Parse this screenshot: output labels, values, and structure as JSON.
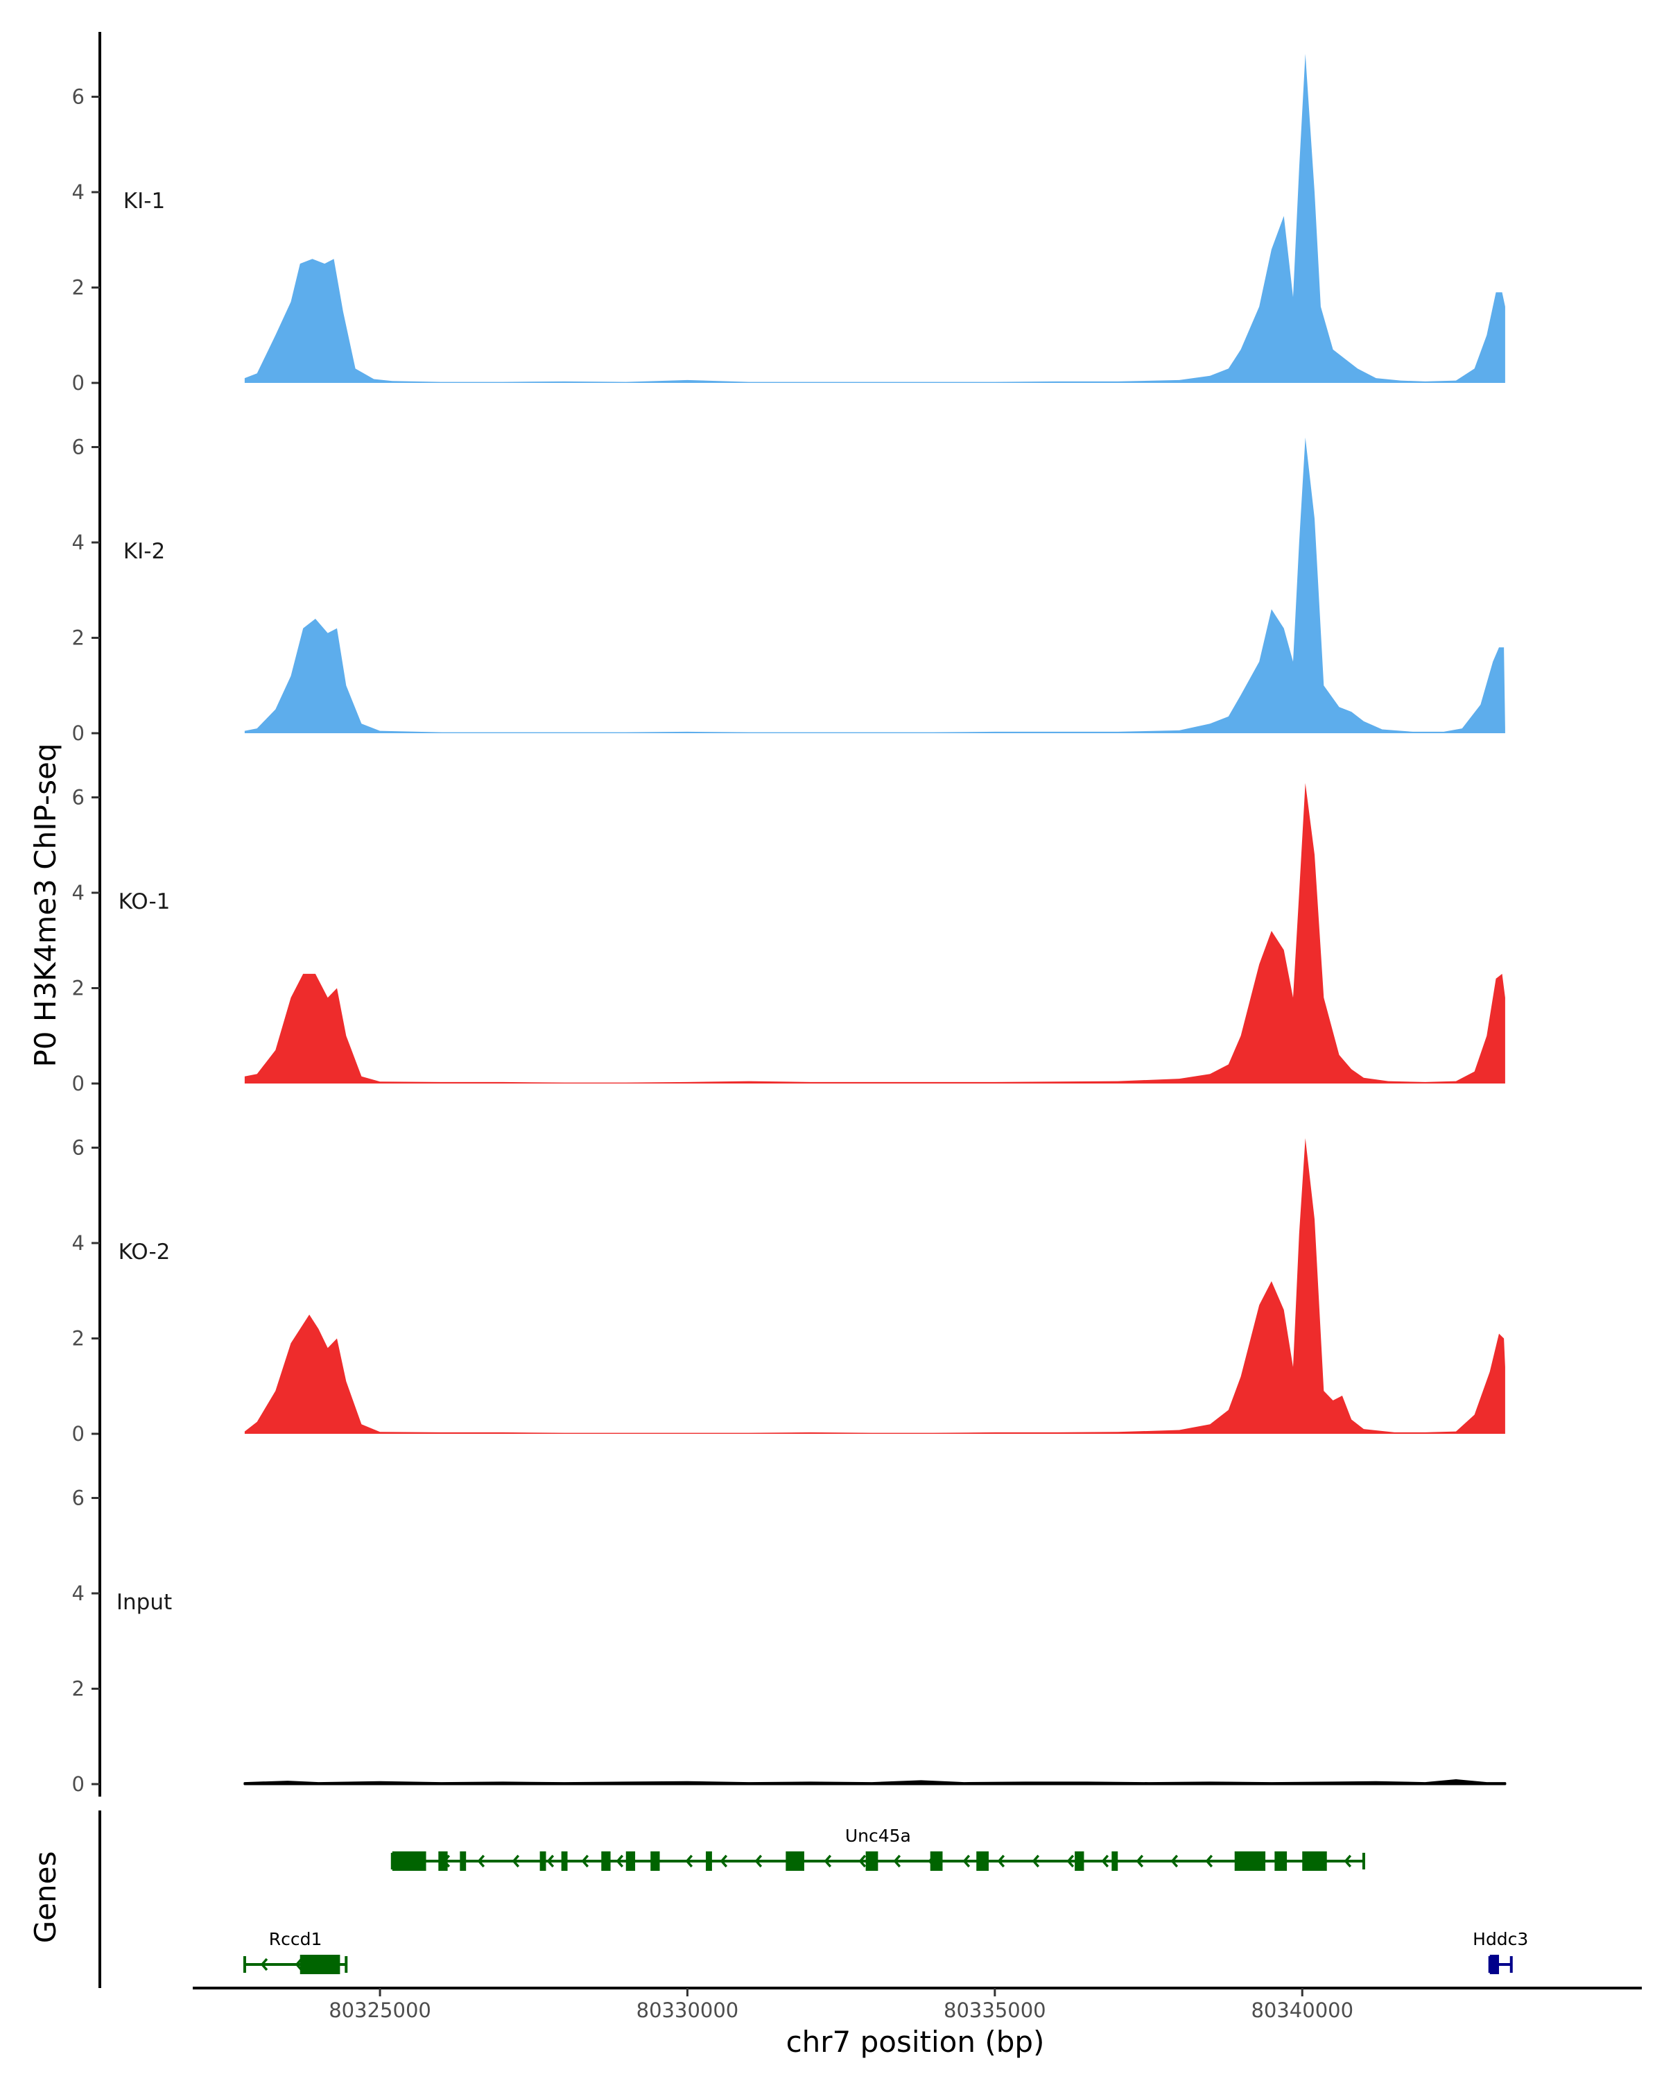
{
  "chart_data": {
    "type": "area",
    "title": "",
    "ylabel": "P0 H3K4me3 ChIP-seq",
    "xlabel": "chr7 position (bp)",
    "xlim": [
      80322000,
      80345500
    ],
    "ylim": [
      0,
      7.2
    ],
    "y_ticks": [
      0,
      2,
      4,
      6
    ],
    "x_ticks": [
      80325000,
      80330000,
      80335000,
      80340000
    ],
    "x_tick_labels": [
      "80325000",
      "80330000",
      "80335000",
      "80340000"
    ],
    "signal_range": [
      80322800,
      80343300
    ],
    "tracks": [
      {
        "name": "KI-1",
        "color": "#5DADEC",
        "points": [
          [
            80322800,
            0.1
          ],
          [
            80323000,
            0.2
          ],
          [
            80323300,
            1.0
          ],
          [
            80323550,
            1.7
          ],
          [
            80323700,
            2.5
          ],
          [
            80323900,
            2.6
          ],
          [
            80324100,
            2.5
          ],
          [
            80324250,
            2.6
          ],
          [
            80324400,
            1.5
          ],
          [
            80324600,
            0.3
          ],
          [
            80324900,
            0.08
          ],
          [
            80325200,
            0.04
          ],
          [
            80326000,
            0.02
          ],
          [
            80327000,
            0.02
          ],
          [
            80328000,
            0.03
          ],
          [
            80329000,
            0.02
          ],
          [
            80330000,
            0.06
          ],
          [
            80331000,
            0.02
          ],
          [
            80332000,
            0.02
          ],
          [
            80333000,
            0.02
          ],
          [
            80334000,
            0.02
          ],
          [
            80335000,
            0.02
          ],
          [
            80336000,
            0.03
          ],
          [
            80337000,
            0.03
          ],
          [
            80338000,
            0.06
          ],
          [
            80338500,
            0.15
          ],
          [
            80338800,
            0.3
          ],
          [
            80339000,
            0.7
          ],
          [
            80339300,
            1.6
          ],
          [
            80339500,
            2.8
          ],
          [
            80339700,
            3.5
          ],
          [
            80339850,
            1.8
          ],
          [
            80339950,
            4.5
          ],
          [
            80340050,
            6.9
          ],
          [
            80340200,
            4.0
          ],
          [
            80340300,
            1.6
          ],
          [
            80340500,
            0.7
          ],
          [
            80340700,
            0.5
          ],
          [
            80340900,
            0.3
          ],
          [
            80341200,
            0.1
          ],
          [
            80341600,
            0.05
          ],
          [
            80342000,
            0.03
          ],
          [
            80342500,
            0.05
          ],
          [
            80342800,
            0.3
          ],
          [
            80343000,
            1.0
          ],
          [
            80343150,
            1.9
          ],
          [
            80343250,
            1.9
          ],
          [
            80343300,
            1.6
          ]
        ]
      },
      {
        "name": "KI-2",
        "color": "#5DADEC",
        "points": [
          [
            80322800,
            0.05
          ],
          [
            80323000,
            0.1
          ],
          [
            80323300,
            0.5
          ],
          [
            80323550,
            1.2
          ],
          [
            80323750,
            2.2
          ],
          [
            80323950,
            2.4
          ],
          [
            80324150,
            2.1
          ],
          [
            80324300,
            2.2
          ],
          [
            80324450,
            1.0
          ],
          [
            80324700,
            0.2
          ],
          [
            80325000,
            0.05
          ],
          [
            80326000,
            0.02
          ],
          [
            80327000,
            0.02
          ],
          [
            80328000,
            0.02
          ],
          [
            80329000,
            0.02
          ],
          [
            80330000,
            0.03
          ],
          [
            80331000,
            0.02
          ],
          [
            80332000,
            0.02
          ],
          [
            80333000,
            0.02
          ],
          [
            80334000,
            0.02
          ],
          [
            80335000,
            0.03
          ],
          [
            80336000,
            0.03
          ],
          [
            80337000,
            0.03
          ],
          [
            80338000,
            0.06
          ],
          [
            80338500,
            0.2
          ],
          [
            80338800,
            0.35
          ],
          [
            80339000,
            0.8
          ],
          [
            80339300,
            1.5
          ],
          [
            80339500,
            2.6
          ],
          [
            80339700,
            2.2
          ],
          [
            80339850,
            1.5
          ],
          [
            80339950,
            4.0
          ],
          [
            80340050,
            6.2
          ],
          [
            80340200,
            4.5
          ],
          [
            80340350,
            1.0
          ],
          [
            80340600,
            0.55
          ],
          [
            80340800,
            0.45
          ],
          [
            80341000,
            0.25
          ],
          [
            80341300,
            0.08
          ],
          [
            80341800,
            0.03
          ],
          [
            80342300,
            0.03
          ],
          [
            80342600,
            0.1
          ],
          [
            80342900,
            0.6
          ],
          [
            80343100,
            1.5
          ],
          [
            80343200,
            1.8
          ],
          [
            80343280,
            1.8
          ],
          [
            80343300,
            0.1
          ]
        ]
      },
      {
        "name": "KO-1",
        "color": "#EE2C2C",
        "points": [
          [
            80322800,
            0.15
          ],
          [
            80323000,
            0.2
          ],
          [
            80323300,
            0.7
          ],
          [
            80323550,
            1.8
          ],
          [
            80323750,
            2.3
          ],
          [
            80323950,
            2.3
          ],
          [
            80324150,
            1.8
          ],
          [
            80324300,
            2.0
          ],
          [
            80324450,
            1.0
          ],
          [
            80324700,
            0.15
          ],
          [
            80325000,
            0.04
          ],
          [
            80326000,
            0.03
          ],
          [
            80327000,
            0.03
          ],
          [
            80328000,
            0.02
          ],
          [
            80329000,
            0.02
          ],
          [
            80330000,
            0.03
          ],
          [
            80331000,
            0.05
          ],
          [
            80332000,
            0.03
          ],
          [
            80333000,
            0.03
          ],
          [
            80334000,
            0.03
          ],
          [
            80335000,
            0.03
          ],
          [
            80336000,
            0.04
          ],
          [
            80337000,
            0.05
          ],
          [
            80338000,
            0.1
          ],
          [
            80338500,
            0.2
          ],
          [
            80338800,
            0.4
          ],
          [
            80339000,
            1.0
          ],
          [
            80339300,
            2.5
          ],
          [
            80339500,
            3.2
          ],
          [
            80339700,
            2.8
          ],
          [
            80339850,
            1.8
          ],
          [
            80339950,
            4.0
          ],
          [
            80340050,
            6.3
          ],
          [
            80340200,
            4.8
          ],
          [
            80340350,
            1.8
          ],
          [
            80340600,
            0.6
          ],
          [
            80340800,
            0.3
          ],
          [
            80341000,
            0.12
          ],
          [
            80341400,
            0.05
          ],
          [
            80342000,
            0.03
          ],
          [
            80342500,
            0.05
          ],
          [
            80342800,
            0.25
          ],
          [
            80343000,
            1.0
          ],
          [
            80343150,
            2.2
          ],
          [
            80343250,
            2.3
          ],
          [
            80343300,
            1.8
          ]
        ]
      },
      {
        "name": "KO-2",
        "color": "#EE2C2C",
        "points": [
          [
            80322800,
            0.05
          ],
          [
            80323000,
            0.25
          ],
          [
            80323300,
            0.9
          ],
          [
            80323550,
            1.9
          ],
          [
            80323700,
            2.2
          ],
          [
            80323850,
            2.5
          ],
          [
            80324000,
            2.2
          ],
          [
            80324150,
            1.8
          ],
          [
            80324300,
            2.0
          ],
          [
            80324450,
            1.1
          ],
          [
            80324700,
            0.2
          ],
          [
            80325000,
            0.04
          ],
          [
            80326000,
            0.03
          ],
          [
            80327000,
            0.03
          ],
          [
            80328000,
            0.02
          ],
          [
            80329000,
            0.02
          ],
          [
            80330000,
            0.02
          ],
          [
            80331000,
            0.02
          ],
          [
            80332000,
            0.03
          ],
          [
            80333000,
            0.02
          ],
          [
            80334000,
            0.02
          ],
          [
            80335000,
            0.03
          ],
          [
            80336000,
            0.03
          ],
          [
            80337000,
            0.04
          ],
          [
            80338000,
            0.08
          ],
          [
            80338500,
            0.2
          ],
          [
            80338800,
            0.5
          ],
          [
            80339000,
            1.2
          ],
          [
            80339300,
            2.7
          ],
          [
            80339500,
            3.2
          ],
          [
            80339700,
            2.6
          ],
          [
            80339850,
            1.4
          ],
          [
            80339950,
            4.2
          ],
          [
            80340050,
            6.2
          ],
          [
            80340200,
            4.5
          ],
          [
            80340350,
            0.9
          ],
          [
            80340500,
            0.7
          ],
          [
            80340650,
            0.8
          ],
          [
            80340800,
            0.3
          ],
          [
            80341000,
            0.1
          ],
          [
            80341500,
            0.03
          ],
          [
            80342000,
            0.03
          ],
          [
            80342500,
            0.05
          ],
          [
            80342800,
            0.4
          ],
          [
            80343050,
            1.3
          ],
          [
            80343200,
            2.1
          ],
          [
            80343280,
            2.0
          ],
          [
            80343300,
            1.4
          ]
        ]
      },
      {
        "name": "Input",
        "color": "#000000",
        "points": [
          [
            80322800,
            0.02
          ],
          [
            80323500,
            0.05
          ],
          [
            80324000,
            0.02
          ],
          [
            80325000,
            0.04
          ],
          [
            80326000,
            0.02
          ],
          [
            80327000,
            0.03
          ],
          [
            80328000,
            0.02
          ],
          [
            80329000,
            0.03
          ],
          [
            80330000,
            0.04
          ],
          [
            80331000,
            0.02
          ],
          [
            80332000,
            0.03
          ],
          [
            80333000,
            0.02
          ],
          [
            80333800,
            0.06
          ],
          [
            80334500,
            0.02
          ],
          [
            80335500,
            0.03
          ],
          [
            80336500,
            0.03
          ],
          [
            80337500,
            0.02
          ],
          [
            80338500,
            0.03
          ],
          [
            80339500,
            0.02
          ],
          [
            80340500,
            0.03
          ],
          [
            80341200,
            0.04
          ],
          [
            80342000,
            0.02
          ],
          [
            80342500,
            0.08
          ],
          [
            80343000,
            0.02
          ],
          [
            80343300,
            0.02
          ]
        ]
      }
    ],
    "genes_track_label": "Genes",
    "genes": [
      {
        "name": "Unc45a",
        "strand": "-",
        "color": "#006400",
        "start": 80325200,
        "end": 80341000,
        "exons": [
          [
            80325200,
            80325750
          ],
          [
            80325950,
            80326100
          ],
          [
            80326300,
            80326400
          ],
          [
            80327600,
            80327700
          ],
          [
            80327950,
            80328050
          ],
          [
            80328600,
            80328750
          ],
          [
            80329000,
            80329150
          ],
          [
            80329400,
            80329550
          ],
          [
            80330300,
            80330400
          ],
          [
            80331600,
            80331900
          ],
          [
            80332900,
            80333100
          ],
          [
            80333950,
            80334150
          ],
          [
            80334700,
            80334900
          ],
          [
            80336300,
            80336450
          ],
          [
            80336900,
            80337000
          ],
          [
            80338900,
            80339400
          ],
          [
            80339550,
            80339750
          ],
          [
            80340000,
            80340400
          ]
        ]
      },
      {
        "name": "Rccd1",
        "strand": "-",
        "color": "#006400",
        "start": 80322800,
        "end": 80324450,
        "exons": [
          [
            80323700,
            80324350
          ]
        ]
      },
      {
        "name": "Hddc3",
        "strand": "+",
        "color": "#00008B",
        "start": 80343050,
        "end": 80343400,
        "exons": [
          [
            80343050,
            80343200
          ]
        ]
      }
    ]
  }
}
